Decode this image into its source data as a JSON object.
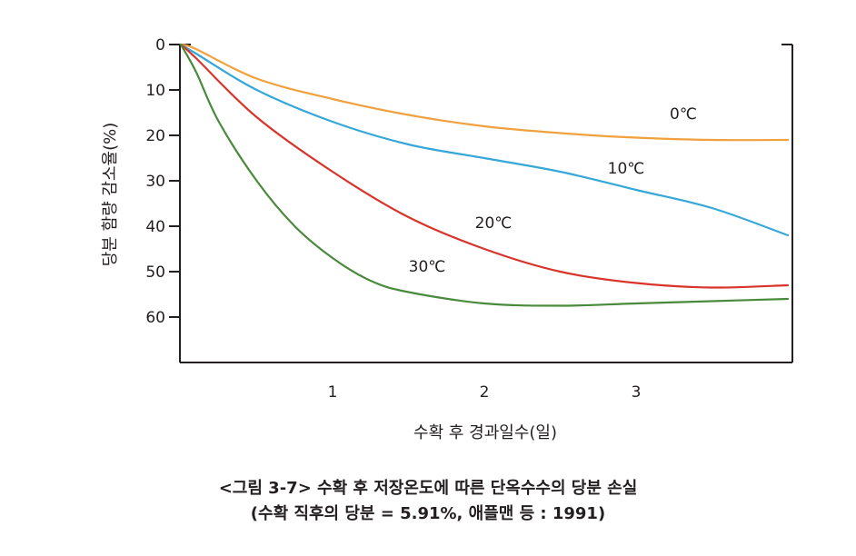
{
  "chart_data": {
    "type": "line",
    "xlabel": "수확 후 경과일수(일)",
    "ylabel": "당분 함량 감소율(%)",
    "x_ticks": [
      1,
      2,
      3
    ],
    "y_ticks": [
      0,
      10,
      20,
      30,
      40,
      50,
      60
    ],
    "xlim": [
      0,
      4
    ],
    "ylim": [
      0,
      70
    ],
    "y_inverted": true,
    "grid": false,
    "series": [
      {
        "name": "0℃",
        "color": "#f0a03c",
        "x": [
          0,
          0.1,
          0.5,
          1,
          1.5,
          2,
          2.5,
          3,
          3.5,
          4
        ],
        "y": [
          0,
          1,
          7.5,
          12,
          15.5,
          18,
          19.5,
          20.5,
          21,
          21
        ]
      },
      {
        "name": "10℃",
        "color": "#35a7d8",
        "x": [
          0,
          0.1,
          0.5,
          1,
          1.5,
          2,
          2.5,
          3,
          3.5,
          4
        ],
        "y": [
          0,
          2,
          10,
          17,
          22,
          25,
          28,
          32,
          36,
          42
        ]
      },
      {
        "name": "20℃",
        "color": "#d9342b",
        "x": [
          0,
          0.1,
          0.5,
          1,
          1.5,
          2,
          2.5,
          3,
          3.5,
          4
        ],
        "y": [
          0,
          3,
          16,
          28,
          38,
          45,
          50,
          52.5,
          53.5,
          53
        ]
      },
      {
        "name": "30℃",
        "color": "#4a8a3c",
        "x": [
          0,
          0.1,
          0.25,
          0.5,
          0.75,
          1,
          1.25,
          1.5,
          2,
          2.5,
          3,
          3.5,
          4
        ],
        "y": [
          0,
          6,
          17,
          30,
          40,
          47,
          52,
          54.5,
          57,
          57.5,
          57,
          56.5,
          56
        ]
      }
    ]
  },
  "caption": {
    "line1": "<그림 3-7> 수확 후 저장온도에 따른 단옥수수의 당분 손실",
    "line2": "(수확 직후의 당분 = 5.91%, 애플맨 등 : 1991)"
  }
}
